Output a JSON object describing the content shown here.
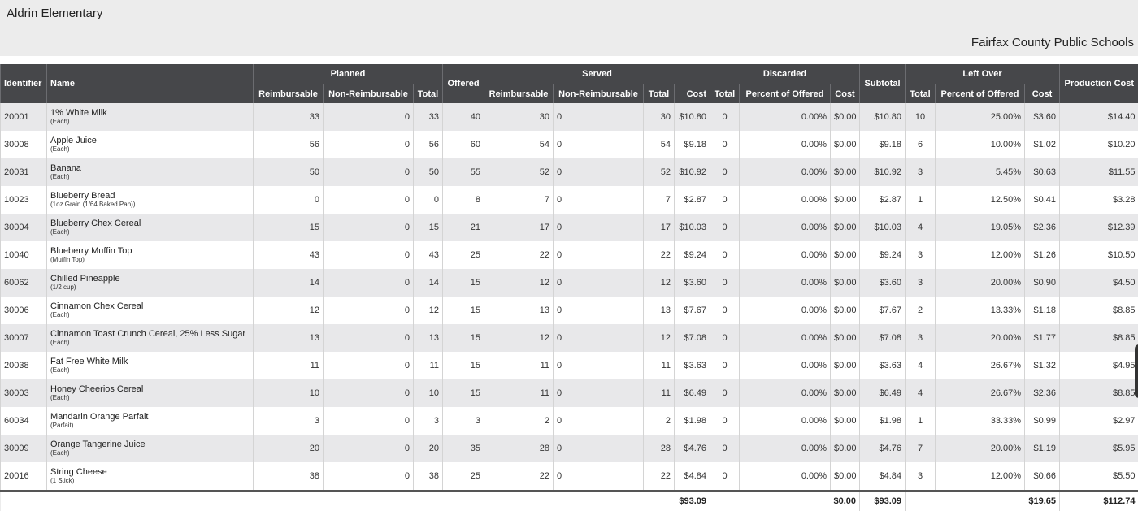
{
  "header": {
    "school": "Aldrin Elementary",
    "district": "Fairfax County Public Schools"
  },
  "columns": {
    "identifier": "Identifier",
    "name": "Name",
    "planned": "Planned",
    "offered": "Offered",
    "served": "Served",
    "discarded": "Discarded",
    "subtotal": "Subtotal",
    "left_over": "Left Over",
    "production_cost": "Production Cost",
    "reimbursable": "Reimbursable",
    "non_reimbursable": "Non-Reimbursable",
    "total": "Total",
    "cost": "Cost",
    "percent_of_offered": "Percent of Offered"
  },
  "rows": [
    {
      "id": "20001",
      "name": "1% White Milk",
      "unit": "(Each)",
      "planned": {
        "reimb": "33",
        "non": "0",
        "total": "33"
      },
      "offered": "40",
      "served": {
        "reimb": "30",
        "non": "0",
        "total": "30",
        "cost": "$10.80"
      },
      "discarded": {
        "total": "0",
        "pct": "0.00%",
        "cost": "$0.00"
      },
      "subtotal": "$10.80",
      "left_over": {
        "total": "10",
        "pct": "25.00%",
        "cost": "$3.60"
      },
      "production_cost": "$14.40"
    },
    {
      "id": "30008",
      "name": "Apple Juice",
      "unit": "(Each)",
      "planned": {
        "reimb": "56",
        "non": "0",
        "total": "56"
      },
      "offered": "60",
      "served": {
        "reimb": "54",
        "non": "0",
        "total": "54",
        "cost": "$9.18"
      },
      "discarded": {
        "total": "0",
        "pct": "0.00%",
        "cost": "$0.00"
      },
      "subtotal": "$9.18",
      "left_over": {
        "total": "6",
        "pct": "10.00%",
        "cost": "$1.02"
      },
      "production_cost": "$10.20"
    },
    {
      "id": "20031",
      "name": "Banana",
      "unit": "(Each)",
      "planned": {
        "reimb": "50",
        "non": "0",
        "total": "50"
      },
      "offered": "55",
      "served": {
        "reimb": "52",
        "non": "0",
        "total": "52",
        "cost": "$10.92"
      },
      "discarded": {
        "total": "0",
        "pct": "0.00%",
        "cost": "$0.00"
      },
      "subtotal": "$10.92",
      "left_over": {
        "total": "3",
        "pct": "5.45%",
        "cost": "$0.63"
      },
      "production_cost": "$11.55"
    },
    {
      "id": "10023",
      "name": "Blueberry Bread",
      "unit": "(1oz Grain (1/64 Baked Pan))",
      "planned": {
        "reimb": "0",
        "non": "0",
        "total": "0"
      },
      "offered": "8",
      "served": {
        "reimb": "7",
        "non": "0",
        "total": "7",
        "cost": "$2.87"
      },
      "discarded": {
        "total": "0",
        "pct": "0.00%",
        "cost": "$0.00"
      },
      "subtotal": "$2.87",
      "left_over": {
        "total": "1",
        "pct": "12.50%",
        "cost": "$0.41"
      },
      "production_cost": "$3.28"
    },
    {
      "id": "30004",
      "name": "Blueberry Chex Cereal",
      "unit": "(Each)",
      "planned": {
        "reimb": "15",
        "non": "0",
        "total": "15"
      },
      "offered": "21",
      "served": {
        "reimb": "17",
        "non": "0",
        "total": "17",
        "cost": "$10.03"
      },
      "discarded": {
        "total": "0",
        "pct": "0.00%",
        "cost": "$0.00"
      },
      "subtotal": "$10.03",
      "left_over": {
        "total": "4",
        "pct": "19.05%",
        "cost": "$2.36"
      },
      "production_cost": "$12.39"
    },
    {
      "id": "10040",
      "name": "Blueberry Muffin Top",
      "unit": "(Muffin Top)",
      "planned": {
        "reimb": "43",
        "non": "0",
        "total": "43"
      },
      "offered": "25",
      "served": {
        "reimb": "22",
        "non": "0",
        "total": "22",
        "cost": "$9.24"
      },
      "discarded": {
        "total": "0",
        "pct": "0.00%",
        "cost": "$0.00"
      },
      "subtotal": "$9.24",
      "left_over": {
        "total": "3",
        "pct": "12.00%",
        "cost": "$1.26"
      },
      "production_cost": "$10.50"
    },
    {
      "id": "60062",
      "name": "Chilled Pineapple",
      "unit": "(1/2 cup)",
      "planned": {
        "reimb": "14",
        "non": "0",
        "total": "14"
      },
      "offered": "15",
      "served": {
        "reimb": "12",
        "non": "0",
        "total": "12",
        "cost": "$3.60"
      },
      "discarded": {
        "total": "0",
        "pct": "0.00%",
        "cost": "$0.00"
      },
      "subtotal": "$3.60",
      "left_over": {
        "total": "3",
        "pct": "20.00%",
        "cost": "$0.90"
      },
      "production_cost": "$4.50"
    },
    {
      "id": "30006",
      "name": "Cinnamon Chex Cereal",
      "unit": "(Each)",
      "planned": {
        "reimb": "12",
        "non": "0",
        "total": "12"
      },
      "offered": "15",
      "served": {
        "reimb": "13",
        "non": "0",
        "total": "13",
        "cost": "$7.67"
      },
      "discarded": {
        "total": "0",
        "pct": "0.00%",
        "cost": "$0.00"
      },
      "subtotal": "$7.67",
      "left_over": {
        "total": "2",
        "pct": "13.33%",
        "cost": "$1.18"
      },
      "production_cost": "$8.85"
    },
    {
      "id": "30007",
      "name": "Cinnamon Toast Crunch Cereal, 25% Less Sugar",
      "unit": "(Each)",
      "planned": {
        "reimb": "13",
        "non": "0",
        "total": "13"
      },
      "offered": "15",
      "served": {
        "reimb": "12",
        "non": "0",
        "total": "12",
        "cost": "$7.08"
      },
      "discarded": {
        "total": "0",
        "pct": "0.00%",
        "cost": "$0.00"
      },
      "subtotal": "$7.08",
      "left_over": {
        "total": "3",
        "pct": "20.00%",
        "cost": "$1.77"
      },
      "production_cost": "$8.85"
    },
    {
      "id": "20038",
      "name": "Fat Free White Milk",
      "unit": "(Each)",
      "planned": {
        "reimb": "11",
        "non": "0",
        "total": "11"
      },
      "offered": "15",
      "served": {
        "reimb": "11",
        "non": "0",
        "total": "11",
        "cost": "$3.63"
      },
      "discarded": {
        "total": "0",
        "pct": "0.00%",
        "cost": "$0.00"
      },
      "subtotal": "$3.63",
      "left_over": {
        "total": "4",
        "pct": "26.67%",
        "cost": "$1.32"
      },
      "production_cost": "$4.95"
    },
    {
      "id": "30003",
      "name": "Honey Cheerios Cereal",
      "unit": "(Each)",
      "planned": {
        "reimb": "10",
        "non": "0",
        "total": "10"
      },
      "offered": "15",
      "served": {
        "reimb": "11",
        "non": "0",
        "total": "11",
        "cost": "$6.49"
      },
      "discarded": {
        "total": "0",
        "pct": "0.00%",
        "cost": "$0.00"
      },
      "subtotal": "$6.49",
      "left_over": {
        "total": "4",
        "pct": "26.67%",
        "cost": "$2.36"
      },
      "production_cost": "$8.85"
    },
    {
      "id": "60034",
      "name": "Mandarin Orange Parfait",
      "unit": "(Parfait)",
      "planned": {
        "reimb": "3",
        "non": "0",
        "total": "3"
      },
      "offered": "3",
      "served": {
        "reimb": "2",
        "non": "0",
        "total": "2",
        "cost": "$1.98"
      },
      "discarded": {
        "total": "0",
        "pct": "0.00%",
        "cost": "$0.00"
      },
      "subtotal": "$1.98",
      "left_over": {
        "total": "1",
        "pct": "33.33%",
        "cost": "$0.99"
      },
      "production_cost": "$2.97"
    },
    {
      "id": "30009",
      "name": "Orange Tangerine Juice",
      "unit": "(Each)",
      "planned": {
        "reimb": "20",
        "non": "0",
        "total": "20"
      },
      "offered": "35",
      "served": {
        "reimb": "28",
        "non": "0",
        "total": "28",
        "cost": "$4.76"
      },
      "discarded": {
        "total": "0",
        "pct": "0.00%",
        "cost": "$0.00"
      },
      "subtotal": "$4.76",
      "left_over": {
        "total": "7",
        "pct": "20.00%",
        "cost": "$1.19"
      },
      "production_cost": "$5.95"
    },
    {
      "id": "20016",
      "name": "String Cheese",
      "unit": "(1 Stick)",
      "planned": {
        "reimb": "38",
        "non": "0",
        "total": "38"
      },
      "offered": "25",
      "served": {
        "reimb": "22",
        "non": "0",
        "total": "22",
        "cost": "$4.84"
      },
      "discarded": {
        "total": "0",
        "pct": "0.00%",
        "cost": "$0.00"
      },
      "subtotal": "$4.84",
      "left_over": {
        "total": "3",
        "pct": "12.00%",
        "cost": "$0.66"
      },
      "production_cost": "$5.50"
    }
  ],
  "totals": {
    "served_cost": "$93.09",
    "discarded_cost": "$0.00",
    "subtotal": "$93.09",
    "left_over_cost": "$19.65",
    "production_cost": "$112.74"
  }
}
